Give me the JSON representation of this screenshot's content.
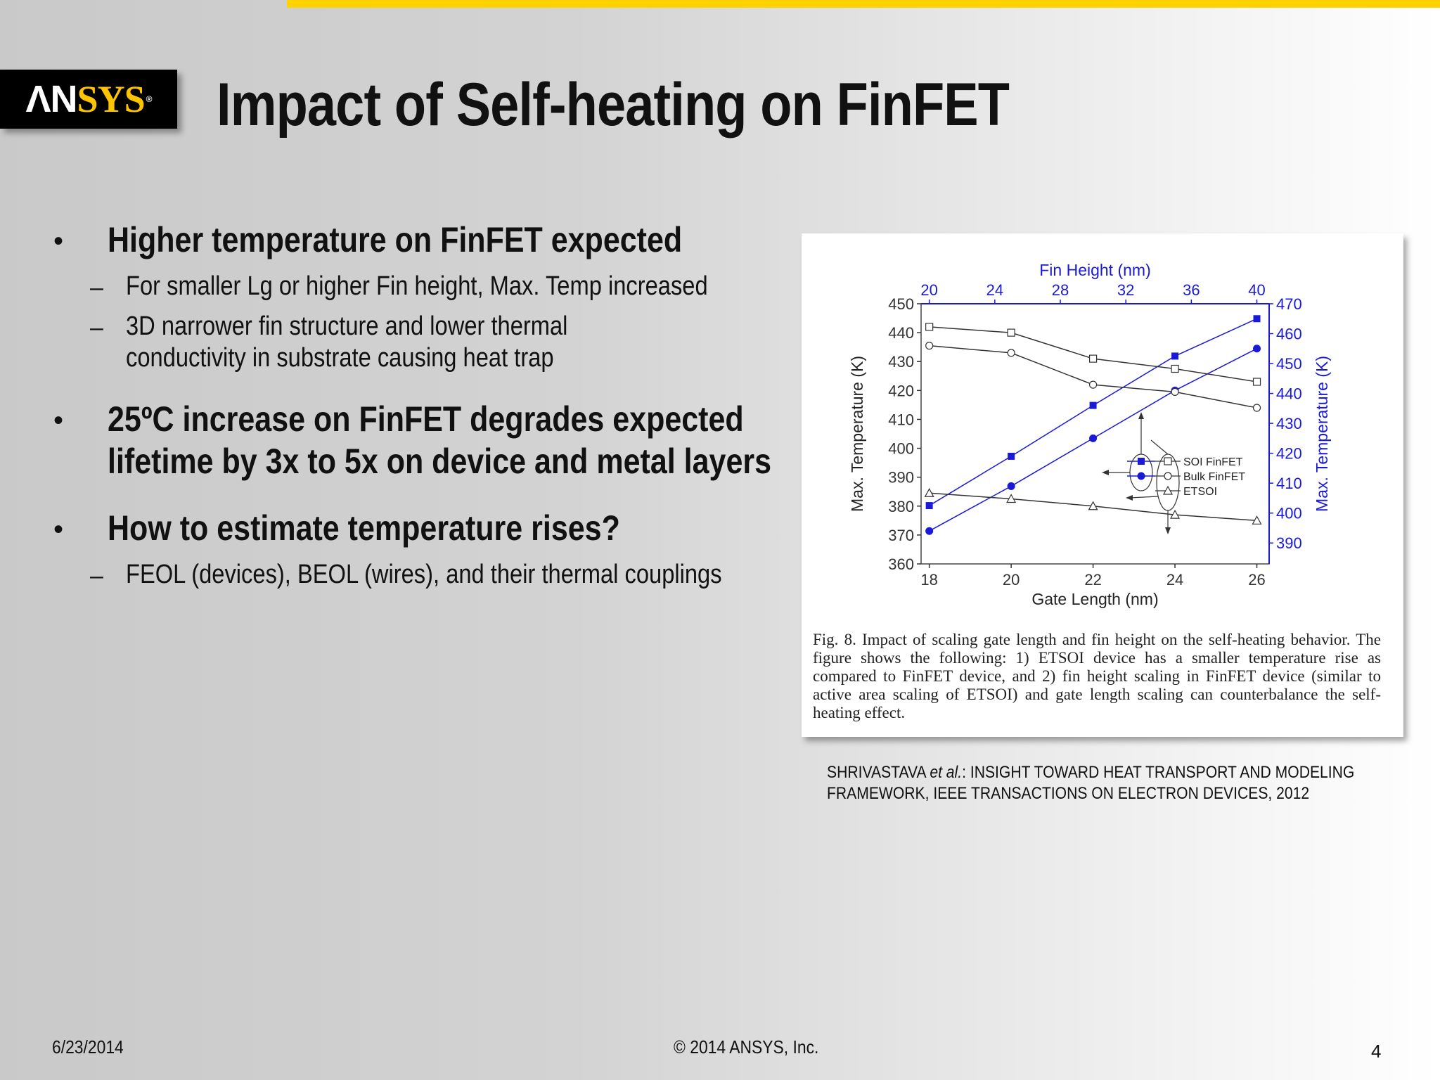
{
  "brand": {
    "logo_prefix": "ΛN",
    "logo_suffix": "SYS",
    "registered": "®",
    "accent_color": "#ffd200"
  },
  "slide": {
    "title": "Impact of Self-heating on FinFET",
    "bullets": [
      {
        "text": "Higher temperature on FinFET expected",
        "subs": [
          "For smaller Lg or higher Fin height, Max. Temp increased",
          "3D narrower fin structure  and lower thermal",
          "conductivity in substrate causing heat trap"
        ]
      },
      {
        "text": "25ºC increase on FinFET degrades expected",
        "text2": "lifetime by 3x to 5x on device and metal layers"
      },
      {
        "text": "How to estimate temperature rises?",
        "subs": [
          "FEOL (devices), BEOL (wires),  and their thermal couplings"
        ]
      }
    ],
    "bullet_glyph": "•",
    "dash_glyph": "–",
    "figure_caption": "Fig. 8.  Impact of scaling gate length and fin height on the self-heating behavior. The figure shows the following: 1) ETSOI device has a smaller temperature rise as compared to FinFET device, and 2) fin height scaling in FinFET device (similar to active area scaling of ETSOI) and gate length scaling can counterbalance the self-heating effect.",
    "reference_line1_author": "SHRIVASTAVA",
    "reference_line1_etal": "et al.",
    "reference_line1_rest": ": INSIGHT TOWARD HEAT TRANSPORT AND MODELING",
    "reference_line2": "FRAMEWORK, IEEE TRANSACTIONS ON ELECTRON DEVICES, 2012",
    "footer_date": "6/23/2014",
    "footer_copyright": "© 2014 ANSYS, Inc.",
    "page_number": "4"
  },
  "chart_data": {
    "type": "line",
    "xlabel": "Gate Length (nm)",
    "x2label": "Fin Height (nm)",
    "ylabel": "Max. Temperature (K)",
    "y2label": "Max. Temperature (K)",
    "x": [
      18,
      20,
      22,
      24,
      26
    ],
    "xlim": [
      17.8,
      26.3
    ],
    "x_ticks": [
      18,
      20,
      22,
      24,
      26
    ],
    "x2": [
      20,
      24,
      28,
      32,
      36,
      40
    ],
    "y_ticks": [
      360,
      370,
      380,
      390,
      400,
      410,
      420,
      430,
      440,
      450
    ],
    "ylim": [
      360,
      450
    ],
    "y2_ticks": [
      390,
      400,
      410,
      420,
      430,
      440,
      450,
      460,
      470
    ],
    "y2lim": [
      383,
      470
    ],
    "axis_colors": {
      "left": "#333333",
      "right": "#1a1ad6",
      "top": "#1a1ad6"
    },
    "series": [
      {
        "name": "SOI FinFET",
        "axis": "right",
        "marker": "square-filled",
        "color": "#1a1ad6",
        "values": [
          402.5,
          419,
          436,
          452.5,
          465
        ]
      },
      {
        "name": "Bulk FinFET",
        "axis": "right",
        "marker": "circle-filled",
        "color": "#1a1ad6",
        "values": [
          394,
          409,
          425,
          441,
          455
        ]
      },
      {
        "name": "Bulk FinFET",
        "axis": "left",
        "marker": "square-open",
        "color": "#333333",
        "values": [
          442,
          440,
          431,
          427.5,
          423
        ]
      },
      {
        "name": "Bulk FinFET",
        "axis": "left",
        "marker": "circle-open",
        "color": "#333333",
        "values": [
          435.5,
          433,
          422,
          419.5,
          414
        ]
      },
      {
        "name": "ETSOI",
        "axis": "left",
        "marker": "triangle-open",
        "color": "#333333",
        "values": [
          384.5,
          382.5,
          380,
          377,
          375
        ]
      }
    ],
    "legend": {
      "placement": "right-center",
      "entries": [
        "SOI FinFET",
        "Bulk FinFET",
        "ETSOI"
      ]
    }
  }
}
